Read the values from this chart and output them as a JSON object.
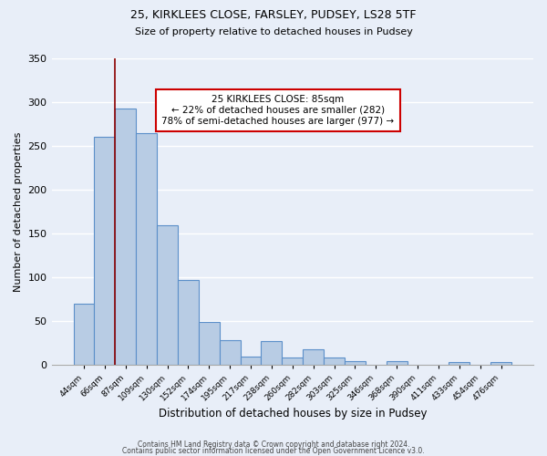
{
  "title1": "25, KIRKLEES CLOSE, FARSLEY, PUDSEY, LS28 5TF",
  "title2": "Size of property relative to detached houses in Pudsey",
  "xlabel": "Distribution of detached houses by size in Pudsey",
  "ylabel": "Number of detached properties",
  "bin_labels": [
    "44sqm",
    "66sqm",
    "87sqm",
    "109sqm",
    "130sqm",
    "152sqm",
    "174sqm",
    "195sqm",
    "217sqm",
    "238sqm",
    "260sqm",
    "282sqm",
    "303sqm",
    "325sqm",
    "346sqm",
    "368sqm",
    "390sqm",
    "411sqm",
    "433sqm",
    "454sqm",
    "476sqm"
  ],
  "bar_values": [
    70,
    260,
    293,
    265,
    160,
    97,
    49,
    28,
    10,
    27,
    9,
    18,
    9,
    4,
    0,
    5,
    0,
    0,
    3,
    0,
    3
  ],
  "bar_color": "#b8cce4",
  "bar_edge_color": "#5b8fc9",
  "annotation_title": "25 KIRKLEES CLOSE: 85sqm",
  "annotation_line1": "← 22% of detached houses are smaller (282)",
  "annotation_line2": "78% of semi-detached houses are larger (977) →",
  "footer1": "Contains HM Land Registry data © Crown copyright and database right 2024.",
  "footer2": "Contains public sector information licensed under the Open Government Licence v3.0.",
  "ylim": [
    0,
    350
  ],
  "yticks": [
    0,
    50,
    100,
    150,
    200,
    250,
    300,
    350
  ],
  "bg_color": "#e8eef8",
  "plot_bg_color": "#e8eef8",
  "red_line_bin_index": 2
}
